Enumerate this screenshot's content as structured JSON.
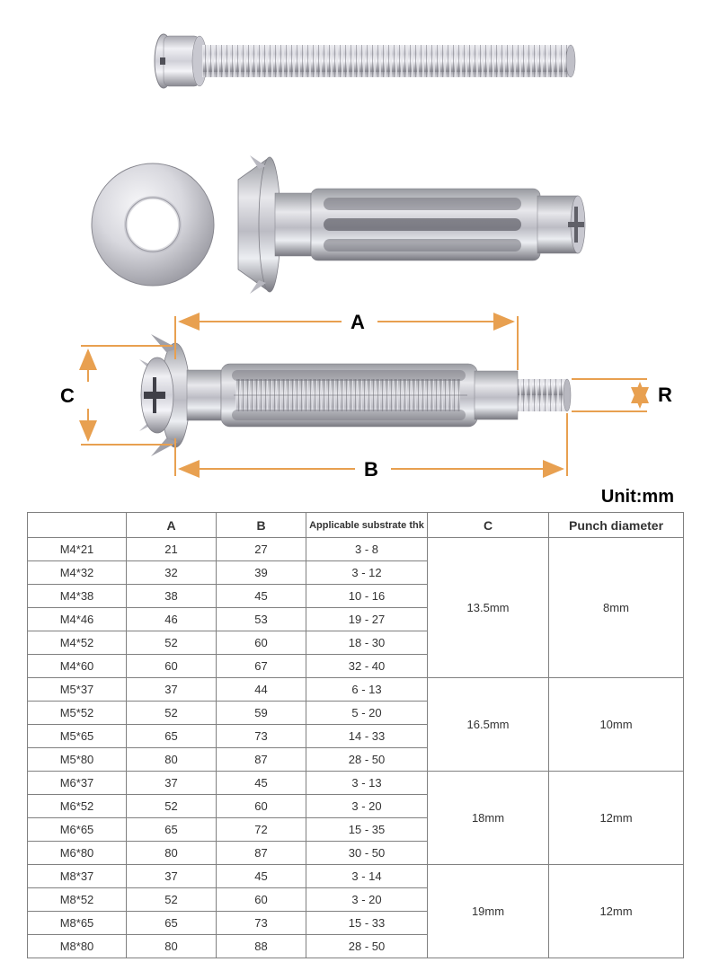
{
  "diagram": {
    "label_a": "A",
    "label_b": "B",
    "label_c": "C",
    "label_r": "R",
    "unit_text": "Unit:mm",
    "dim_color": "#e8a050",
    "metal_light": "#e8e8ea",
    "metal_mid": "#c0c0c8",
    "metal_dark": "#909098",
    "metal_highlight": "#f8f8fa"
  },
  "table": {
    "headers": {
      "name": "",
      "a": "A",
      "b": "B",
      "thk": "Applicable substrate thk",
      "c": "C",
      "pd": "Punch diameter"
    },
    "groups": [
      {
        "c": "13.5mm",
        "pd": "8mm",
        "rows": [
          {
            "name": "M4*21",
            "a": "21",
            "b": "27",
            "thk": "3 - 8"
          },
          {
            "name": "M4*32",
            "a": "32",
            "b": "39",
            "thk": "3 - 12"
          },
          {
            "name": "M4*38",
            "a": "38",
            "b": "45",
            "thk": "10 - 16"
          },
          {
            "name": "M4*46",
            "a": "46",
            "b": "53",
            "thk": "19 - 27"
          },
          {
            "name": "M4*52",
            "a": "52",
            "b": "60",
            "thk": "18 - 30"
          },
          {
            "name": "M4*60",
            "a": "60",
            "b": "67",
            "thk": "32 - 40"
          }
        ]
      },
      {
        "c": "16.5mm",
        "pd": "10mm",
        "rows": [
          {
            "name": "M5*37",
            "a": "37",
            "b": "44",
            "thk": "6 - 13"
          },
          {
            "name": "M5*52",
            "a": "52",
            "b": "59",
            "thk": "5 - 20"
          },
          {
            "name": "M5*65",
            "a": "65",
            "b": "73",
            "thk": "14 - 33"
          },
          {
            "name": "M5*80",
            "a": "80",
            "b": "87",
            "thk": "28 - 50"
          }
        ]
      },
      {
        "c": "18mm",
        "pd": "12mm",
        "rows": [
          {
            "name": "M6*37",
            "a": "37",
            "b": "45",
            "thk": "3 - 13"
          },
          {
            "name": "M6*52",
            "a": "52",
            "b": "60",
            "thk": "3 - 20"
          },
          {
            "name": "M6*65",
            "a": "65",
            "b": "72",
            "thk": "15 - 35"
          },
          {
            "name": "M6*80",
            "a": "80",
            "b": "87",
            "thk": "30 - 50"
          }
        ]
      },
      {
        "c": "19mm",
        "pd": "12mm",
        "rows": [
          {
            "name": "M8*37",
            "a": "37",
            "b": "45",
            "thk": "3 - 14"
          },
          {
            "name": "M8*52",
            "a": "52",
            "b": "60",
            "thk": "3 - 20"
          },
          {
            "name": "M8*65",
            "a": "65",
            "b": "73",
            "thk": "15 - 33"
          },
          {
            "name": "M8*80",
            "a": "80",
            "b": "88",
            "thk": "28 - 50"
          }
        ]
      }
    ]
  }
}
